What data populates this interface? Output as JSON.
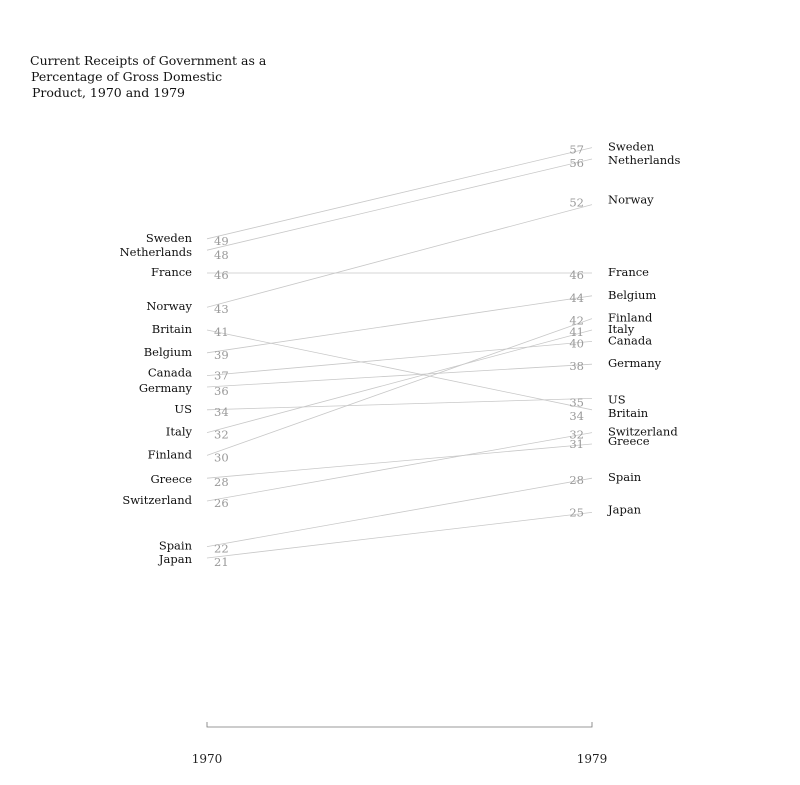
{
  "chart_data": {
    "type": "slope",
    "title_lines": [
      "Current Receipts of Government as a",
      "Percentage of Gross Domestic",
      "Product, 1970 and 1979"
    ],
    "x": [
      "1970",
      "1979"
    ],
    "series": [
      {
        "name": "Sweden",
        "values": [
          49,
          57
        ]
      },
      {
        "name": "Netherlands",
        "values": [
          48,
          56
        ]
      },
      {
        "name": "France",
        "values": [
          46,
          46
        ]
      },
      {
        "name": "Norway",
        "values": [
          43,
          52
        ]
      },
      {
        "name": "Britain",
        "values": [
          41,
          34
        ]
      },
      {
        "name": "Belgium",
        "values": [
          39,
          44
        ]
      },
      {
        "name": "Canada",
        "values": [
          37,
          40
        ]
      },
      {
        "name": "Germany",
        "values": [
          36,
          38
        ]
      },
      {
        "name": "US",
        "values": [
          34,
          35
        ]
      },
      {
        "name": "Italy",
        "values": [
          32,
          41
        ]
      },
      {
        "name": "Finland",
        "values": [
          30,
          42
        ]
      },
      {
        "name": "Greece",
        "values": [
          28,
          31
        ]
      },
      {
        "name": "Switzerland",
        "values": [
          26,
          32
        ]
      },
      {
        "name": "Spain",
        "values": [
          22,
          28
        ]
      },
      {
        "name": "Japan",
        "values": [
          21,
          25
        ]
      }
    ],
    "colors": {
      "line": "#c8c8c8",
      "value_text": "#9a9a9a",
      "label_text": "#111111",
      "axis": "#777777"
    }
  }
}
